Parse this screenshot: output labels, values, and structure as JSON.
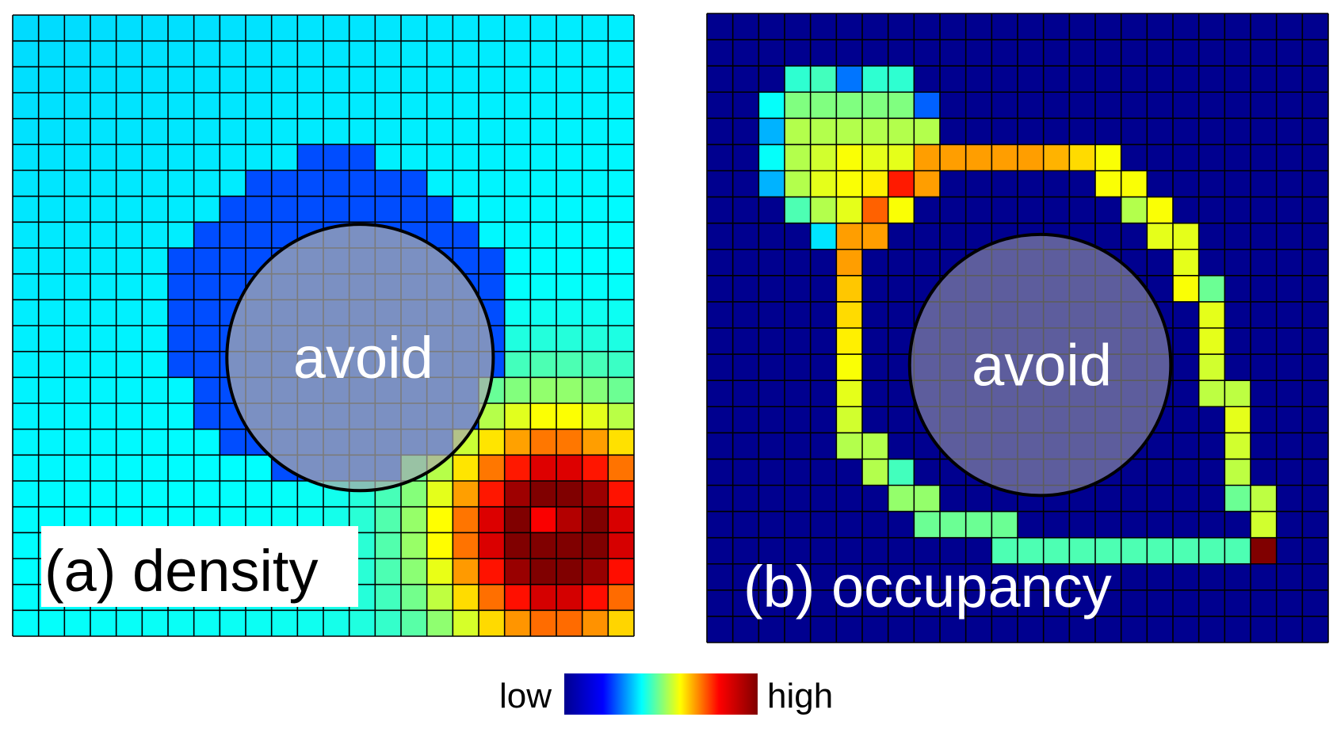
{
  "panels": [
    {
      "label": "(a) density",
      "obstacle_label": "avoid"
    },
    {
      "label": "(b) occupancy",
      "obstacle_label": "avoid"
    }
  ],
  "colorbar": {
    "low_label": "low",
    "high_label": "high",
    "stops": [
      "#00008f",
      "#0000ff",
      "#00ffff",
      "#ffff00",
      "#ff0000",
      "#800000"
    ]
  },
  "chart_data": [
    {
      "type": "heatmap",
      "title": "(a) density",
      "grid_size": [
        24,
        24
      ],
      "colormap": "jet",
      "value_range": [
        0,
        1
      ],
      "background_value": 0.34,
      "obstacle": {
        "label": "avoid",
        "center_cell": [
          11.7,
          12.5
        ],
        "radius_cells": 4.9
      },
      "description_values": {
        "low_ring_value": 0.2,
        "peak_cell": [
          20,
          21
        ],
        "peak_value": 1.0
      },
      "legend": "colorbar low to high"
    },
    {
      "type": "heatmap",
      "title": "(b) occupancy",
      "grid_size": [
        24,
        24
      ],
      "colormap": "jet",
      "value_range": [
        0,
        1
      ],
      "background_value": 0.0,
      "obstacle": {
        "label": "avoid",
        "center_cell": [
          12.2,
          12.2
        ],
        "radius_cells": 4.8
      },
      "cells": [
        [
          2,
          3,
          0.42
        ],
        [
          2,
          4,
          0.44
        ],
        [
          2,
          5,
          0.24
        ],
        [
          2,
          6,
          0.42
        ],
        [
          2,
          7,
          0.42
        ],
        [
          3,
          2,
          0.38
        ],
        [
          3,
          3,
          0.5
        ],
        [
          3,
          4,
          0.5
        ],
        [
          3,
          5,
          0.5
        ],
        [
          3,
          6,
          0.5
        ],
        [
          3,
          7,
          0.5
        ],
        [
          3,
          8,
          0.22
        ],
        [
          4,
          2,
          0.3
        ],
        [
          4,
          3,
          0.55
        ],
        [
          4,
          4,
          0.55
        ],
        [
          4,
          5,
          0.55
        ],
        [
          4,
          6,
          0.55
        ],
        [
          4,
          7,
          0.55
        ],
        [
          4,
          8,
          0.55
        ],
        [
          5,
          2,
          0.38
        ],
        [
          5,
          3,
          0.55
        ],
        [
          5,
          4,
          0.58
        ],
        [
          5,
          5,
          0.62
        ],
        [
          5,
          6,
          0.6
        ],
        [
          5,
          7,
          0.6
        ],
        [
          5,
          8,
          0.72
        ],
        [
          5,
          9,
          0.72
        ],
        [
          5,
          10,
          0.72
        ],
        [
          5,
          11,
          0.72
        ],
        [
          5,
          12,
          0.72
        ],
        [
          5,
          13,
          0.7
        ],
        [
          5,
          14,
          0.66
        ],
        [
          5,
          15,
          0.62
        ],
        [
          6,
          2,
          0.3
        ],
        [
          6,
          3,
          0.55
        ],
        [
          6,
          4,
          0.6
        ],
        [
          6,
          5,
          0.62
        ],
        [
          6,
          6,
          0.64
        ],
        [
          6,
          7,
          0.85
        ],
        [
          6,
          8,
          0.72
        ],
        [
          6,
          15,
          0.62
        ],
        [
          6,
          16,
          0.62
        ],
        [
          7,
          3,
          0.45
        ],
        [
          7,
          4,
          0.55
        ],
        [
          7,
          5,
          0.6
        ],
        [
          7,
          6,
          0.78
        ],
        [
          7,
          7,
          0.62
        ],
        [
          7,
          16,
          0.55
        ],
        [
          7,
          17,
          0.62
        ],
        [
          8,
          4,
          0.35
        ],
        [
          8,
          5,
          0.72
        ],
        [
          8,
          6,
          0.72
        ],
        [
          8,
          17,
          0.6
        ],
        [
          8,
          18,
          0.6
        ],
        [
          9,
          5,
          0.72
        ],
        [
          9,
          18,
          0.6
        ],
        [
          10,
          5,
          0.68
        ],
        [
          10,
          18,
          0.62
        ],
        [
          10,
          19,
          0.48
        ],
        [
          11,
          5,
          0.66
        ],
        [
          11,
          19,
          0.6
        ],
        [
          12,
          5,
          0.64
        ],
        [
          12,
          19,
          0.6
        ],
        [
          13,
          5,
          0.62
        ],
        [
          13,
          19,
          0.58
        ],
        [
          14,
          5,
          0.6
        ],
        [
          14,
          19,
          0.56
        ],
        [
          14,
          20,
          0.56
        ],
        [
          15,
          5,
          0.58
        ],
        [
          15,
          20,
          0.6
        ],
        [
          16,
          5,
          0.55
        ],
        [
          16,
          6,
          0.55
        ],
        [
          16,
          20,
          0.58
        ],
        [
          17,
          6,
          0.55
        ],
        [
          17,
          7,
          0.44
        ],
        [
          17,
          20,
          0.56
        ],
        [
          18,
          7,
          0.52
        ],
        [
          18,
          8,
          0.52
        ],
        [
          18,
          20,
          0.48
        ],
        [
          18,
          21,
          0.56
        ],
        [
          19,
          8,
          0.48
        ],
        [
          19,
          9,
          0.48
        ],
        [
          19,
          10,
          0.48
        ],
        [
          19,
          11,
          0.48
        ],
        [
          19,
          21,
          0.58
        ],
        [
          20,
          11,
          0.45
        ],
        [
          20,
          12,
          0.45
        ],
        [
          20,
          13,
          0.45
        ],
        [
          20,
          14,
          0.45
        ],
        [
          20,
          15,
          0.45
        ],
        [
          20,
          16,
          0.45
        ],
        [
          20,
          17,
          0.45
        ],
        [
          20,
          18,
          0.45
        ],
        [
          20,
          19,
          0.45
        ],
        [
          20,
          20,
          0.45
        ],
        [
          20,
          21,
          1.0
        ]
      ],
      "legend": "colorbar low to high"
    }
  ]
}
